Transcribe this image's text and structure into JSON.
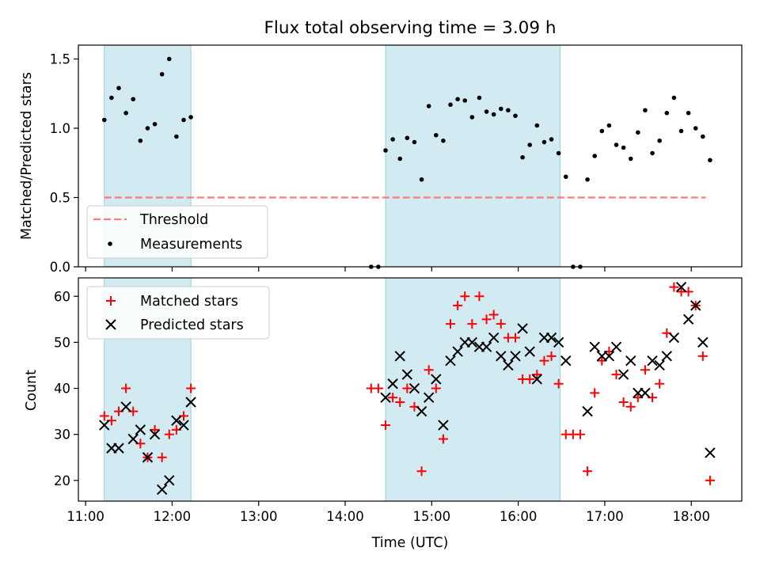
{
  "title": "Flux total observing time = 3.09 h",
  "chart_data": [
    {
      "type": "scatter",
      "ylabel": "Matched/Predicted stars",
      "xlim": [
        "10:55",
        "18:35"
      ],
      "ylim": [
        0,
        1.6
      ],
      "yticks": [
        "0.0",
        "0.5",
        "1.0",
        "1.5"
      ],
      "threshold": {
        "name": "Threshold",
        "y": 0.5,
        "x_start": "11:13",
        "x_end": "18:10",
        "color": "#ff7b7b"
      },
      "shaded_intervals": [
        [
          "11:13",
          "12:13"
        ],
        [
          "14:28",
          "16:29"
        ]
      ],
      "shade_color": "#add8e6",
      "legend": [
        "Threshold",
        "Measurements"
      ],
      "legend_loc": "lower left",
      "series": [
        {
          "name": "Measurements",
          "color": "#000000",
          "points": [
            [
              "11:13",
              1.06
            ],
            [
              "11:18",
              1.22
            ],
            [
              "11:23",
              1.29
            ],
            [
              "11:28",
              1.11
            ],
            [
              "11:33",
              1.21
            ],
            [
              "11:38",
              0.91
            ],
            [
              "11:43",
              1.0
            ],
            [
              "11:48",
              1.03
            ],
            [
              "11:53",
              1.39
            ],
            [
              "11:58",
              1.5
            ],
            [
              "12:03",
              0.94
            ],
            [
              "12:08",
              1.06
            ],
            [
              "12:13",
              1.08
            ],
            [
              "14:18",
              0
            ],
            [
              "14:23",
              0
            ],
            [
              "14:28",
              0.84
            ],
            [
              "14:33",
              0.92
            ],
            [
              "14:38",
              0.78
            ],
            [
              "14:43",
              0.93
            ],
            [
              "14:48",
              0.9
            ],
            [
              "14:53",
              0.63
            ],
            [
              "14:58",
              1.16
            ],
            [
              "15:03",
              0.95
            ],
            [
              "15:08",
              0.91
            ],
            [
              "15:13",
              1.17
            ],
            [
              "15:18",
              1.21
            ],
            [
              "15:23",
              1.2
            ],
            [
              "15:28",
              1.08
            ],
            [
              "15:33",
              1.22
            ],
            [
              "15:38",
              1.12
            ],
            [
              "15:43",
              1.1
            ],
            [
              "15:48",
              1.14
            ],
            [
              "15:53",
              1.13
            ],
            [
              "15:58",
              1.09
            ],
            [
              "16:03",
              0.79
            ],
            [
              "16:08",
              0.88
            ],
            [
              "16:13",
              1.02
            ],
            [
              "16:18",
              0.9
            ],
            [
              "16:23",
              0.92
            ],
            [
              "16:28",
              0.82
            ],
            [
              "16:33",
              0.65
            ],
            [
              "16:38",
              0
            ],
            [
              "16:43",
              0
            ],
            [
              "16:48",
              0.63
            ],
            [
              "16:53",
              0.8
            ],
            [
              "16:58",
              0.98
            ],
            [
              "17:03",
              1.02
            ],
            [
              "17:08",
              0.88
            ],
            [
              "17:13",
              0.86
            ],
            [
              "17:18",
              0.78
            ],
            [
              "17:23",
              0.97
            ],
            [
              "17:28",
              1.13
            ],
            [
              "17:33",
              0.82
            ],
            [
              "17:38",
              0.91
            ],
            [
              "17:43",
              1.11
            ],
            [
              "17:48",
              1.22
            ],
            [
              "17:53",
              0.98
            ],
            [
              "17:58",
              1.11
            ],
            [
              "18:03",
              1.0
            ],
            [
              "18:08",
              0.94
            ],
            [
              "18:13",
              0.77
            ]
          ]
        }
      ]
    },
    {
      "type": "scatter",
      "xlabel": "Time (UTC)",
      "ylabel": "Count",
      "xlim": [
        "10:55",
        "18:35"
      ],
      "ylim": [
        15.5,
        64
      ],
      "yticks": [
        "20",
        "30",
        "40",
        "50",
        "60"
      ],
      "xticks": [
        "11:00",
        "12:00",
        "13:00",
        "14:00",
        "15:00",
        "16:00",
        "17:00",
        "18:00"
      ],
      "shaded_intervals": [
        [
          "11:13",
          "12:13"
        ],
        [
          "14:28",
          "16:29"
        ]
      ],
      "shade_color": "#add8e6",
      "legend": [
        "Matched stars",
        "Predicted stars"
      ],
      "legend_loc": "upper left",
      "series": [
        {
          "name": "Matched stars",
          "marker": "+",
          "color": "#ff0000",
          "points": [
            [
              "11:13",
              34
            ],
            [
              "11:18",
              33
            ],
            [
              "11:23",
              35
            ],
            [
              "11:28",
              40
            ],
            [
              "11:33",
              35
            ],
            [
              "11:38",
              28
            ],
            [
              "11:43",
              25
            ],
            [
              "11:48",
              31
            ],
            [
              "11:53",
              25
            ],
            [
              "11:58",
              30
            ],
            [
              "12:03",
              31
            ],
            [
              "12:08",
              34
            ],
            [
              "12:13",
              40
            ],
            [
              "14:18",
              40
            ],
            [
              "14:23",
              40
            ],
            [
              "14:28",
              32
            ],
            [
              "14:33",
              38
            ],
            [
              "14:38",
              37
            ],
            [
              "14:43",
              40
            ],
            [
              "14:48",
              36
            ],
            [
              "14:53",
              22
            ],
            [
              "14:58",
              44
            ],
            [
              "15:03",
              40
            ],
            [
              "15:08",
              29
            ],
            [
              "15:13",
              54
            ],
            [
              "15:18",
              58
            ],
            [
              "15:23",
              60
            ],
            [
              "15:28",
              54
            ],
            [
              "15:33",
              60
            ],
            [
              "15:38",
              55
            ],
            [
              "15:43",
              56
            ],
            [
              "15:48",
              54
            ],
            [
              "15:53",
              51
            ],
            [
              "15:58",
              51
            ],
            [
              "16:03",
              42
            ],
            [
              "16:08",
              42
            ],
            [
              "16:13",
              43
            ],
            [
              "16:18",
              46
            ],
            [
              "16:23",
              47
            ],
            [
              "16:28",
              41
            ],
            [
              "16:33",
              30
            ],
            [
              "16:38",
              30
            ],
            [
              "16:43",
              30
            ],
            [
              "16:48",
              22
            ],
            [
              "16:53",
              39
            ],
            [
              "16:58",
              46
            ],
            [
              "17:03",
              48
            ],
            [
              "17:08",
              43
            ],
            [
              "17:13",
              37
            ],
            [
              "17:18",
              36
            ],
            [
              "17:23",
              38
            ],
            [
              "17:28",
              44
            ],
            [
              "17:33",
              38
            ],
            [
              "17:38",
              41
            ],
            [
              "17:43",
              52
            ],
            [
              "17:48",
              62
            ],
            [
              "17:53",
              61
            ],
            [
              "17:58",
              61
            ],
            [
              "18:03",
              58
            ],
            [
              "18:08",
              47
            ],
            [
              "18:13",
              20
            ]
          ]
        },
        {
          "name": "Predicted stars",
          "marker": "x",
          "color": "#000000",
          "points": [
            [
              "11:13",
              32
            ],
            [
              "11:18",
              27
            ],
            [
              "11:23",
              27
            ],
            [
              "11:28",
              36
            ],
            [
              "11:33",
              29
            ],
            [
              "11:38",
              31
            ],
            [
              "11:43",
              25
            ],
            [
              "11:48",
              30
            ],
            [
              "11:53",
              18
            ],
            [
              "11:58",
              20
            ],
            [
              "12:03",
              33
            ],
            [
              "12:08",
              32
            ],
            [
              "12:13",
              37
            ],
            [
              "14:28",
              38
            ],
            [
              "14:33",
              41
            ],
            [
              "14:38",
              47
            ],
            [
              "14:43",
              43
            ],
            [
              "14:48",
              40
            ],
            [
              "14:53",
              35
            ],
            [
              "14:58",
              38
            ],
            [
              "15:03",
              42
            ],
            [
              "15:08",
              32
            ],
            [
              "15:13",
              46
            ],
            [
              "15:18",
              48
            ],
            [
              "15:23",
              50
            ],
            [
              "15:28",
              50
            ],
            [
              "15:33",
              49
            ],
            [
              "15:38",
              49
            ],
            [
              "15:43",
              51
            ],
            [
              "15:48",
              47
            ],
            [
              "15:53",
              45
            ],
            [
              "15:58",
              47
            ],
            [
              "16:03",
              53
            ],
            [
              "16:08",
              48
            ],
            [
              "16:13",
              42
            ],
            [
              "16:18",
              51
            ],
            [
              "16:23",
              51
            ],
            [
              "16:28",
              50
            ],
            [
              "16:33",
              46
            ],
            [
              "16:48",
              35
            ],
            [
              "16:53",
              49
            ],
            [
              "16:58",
              47
            ],
            [
              "17:03",
              47
            ],
            [
              "17:08",
              49
            ],
            [
              "17:13",
              43
            ],
            [
              "17:18",
              46
            ],
            [
              "17:23",
              39
            ],
            [
              "17:28",
              39
            ],
            [
              "17:33",
              46
            ],
            [
              "17:38",
              45
            ],
            [
              "17:43",
              47
            ],
            [
              "17:48",
              51
            ],
            [
              "17:53",
              62
            ],
            [
              "17:58",
              55
            ],
            [
              "18:03",
              58
            ],
            [
              "18:08",
              50
            ],
            [
              "18:13",
              26
            ]
          ]
        }
      ]
    }
  ]
}
